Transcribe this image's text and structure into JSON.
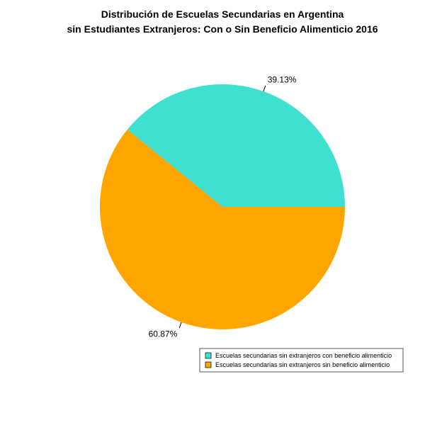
{
  "chart_data": {
    "type": "pie",
    "title": [
      "Distribución de Escuelas Secundarias en Argentina",
      "sin Estudiantes Extranjeros: Con o Sin Beneficio Alimenticio 2016"
    ],
    "slices": [
      {
        "name": "Escuelas secundarias sin extranjeros con beneficio alimenticio",
        "value": 39.13,
        "label": "39.13%",
        "color": "#40E0D0"
      },
      {
        "name": "Escuelas secundarias sin extranjeros sin beneficio alimenticio",
        "value": 60.87,
        "label": "60.87%",
        "color": "#FFA500"
      }
    ],
    "start_angle_deg": 0,
    "direction": "counterclockwise",
    "legend_position": "bottom-right"
  }
}
